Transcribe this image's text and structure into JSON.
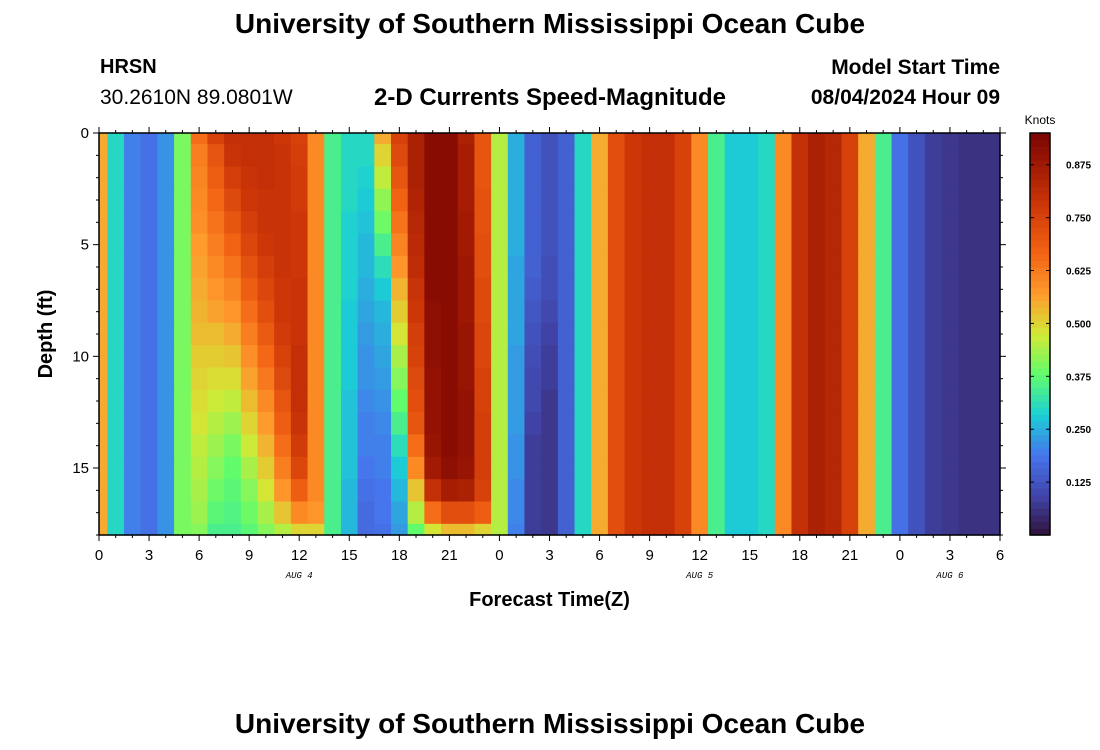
{
  "header": {
    "title": "University of Southern Mississippi Ocean Cube",
    "station": "HRSN",
    "coordinates": "30.2610N  89.0801W",
    "subtitle": "2-D Currents Speed-Magnitude",
    "model_start_label": "Model Start Time",
    "model_start_value": "08/04/2024 Hour 09"
  },
  "footer": {
    "title": "University of Southern Mississippi Ocean Cube"
  },
  "chart_data": {
    "type": "heatmap",
    "title": "2-D Currents Speed-Magnitude",
    "xlabel": "Forecast Time(Z)",
    "ylabel": "Depth (ft)",
    "x_unit": "hours since 08/04/2024 00Z",
    "xlim": [
      0,
      54
    ],
    "ylim": [
      0,
      18
    ],
    "x_ticks": [
      0,
      3,
      6,
      9,
      12,
      15,
      18,
      21,
      24,
      27,
      30,
      33,
      36,
      39,
      42,
      45,
      48,
      51,
      54
    ],
    "x_tick_labels": [
      "0",
      "3",
      "6",
      "9",
      "12",
      "15",
      "18",
      "21",
      "0",
      "3",
      "6",
      "9",
      "12",
      "15",
      "18",
      "21",
      "0",
      "3",
      "6"
    ],
    "y_ticks": [
      0,
      5,
      10,
      15
    ],
    "y_tick_labels": [
      "0",
      "5",
      "10",
      "15"
    ],
    "date_labels": [
      {
        "label": "AUG 4",
        "x": 12
      },
      {
        "label": "AUG 5",
        "x": 36
      },
      {
        "label": "AUG 6",
        "x": 51
      }
    ],
    "colorbar": {
      "label": "Knots",
      "range": [
        0,
        0.95
      ],
      "ticks": [
        0.125,
        0.25,
        0.375,
        0.5,
        0.625,
        0.75,
        0.875
      ],
      "tick_labels": [
        "0.125",
        "0.250",
        "0.375",
        "0.500",
        "0.625",
        "0.750",
        "0.875"
      ]
    },
    "grid": {
      "time_hours": [
        0,
        1,
        2,
        3,
        4,
        5,
        6,
        7,
        8,
        9,
        10,
        11,
        12,
        13,
        14,
        15,
        16,
        17,
        18,
        19,
        20,
        21,
        22,
        23,
        24,
        25,
        26,
        27,
        28,
        29,
        30,
        31,
        32,
        33,
        34,
        35,
        36,
        37,
        38,
        39,
        40,
        41,
        42,
        43,
        44,
        45,
        46,
        47,
        48,
        49,
        50,
        51,
        52,
        53,
        54
      ],
      "depth_ft": [
        0.0,
        1.0,
        2.0,
        3.0,
        4.0,
        5.0,
        6.0,
        7.0,
        8.0,
        9.0,
        10.0,
        11.0,
        12.0,
        13.0,
        14.0,
        15.0,
        16.0,
        17.0,
        18.0
      ],
      "speed_knots": [
        [
          0.55,
          0.3,
          0.2,
          0.18,
          0.22,
          0.4,
          0.65,
          0.75,
          0.8,
          0.8,
          0.8,
          0.78,
          0.75,
          0.6,
          0.35,
          0.3,
          0.3,
          0.55,
          0.75,
          0.85,
          0.92,
          0.92,
          0.85,
          0.7,
          0.45,
          0.25,
          0.15,
          0.12,
          0.15,
          0.3,
          0.55,
          0.72,
          0.78,
          0.8,
          0.8,
          0.75,
          0.6,
          0.35,
          0.28,
          0.28,
          0.3,
          0.6,
          0.8,
          0.85,
          0.83,
          0.75,
          0.55,
          0.35,
          0.18,
          0.12,
          0.08,
          0.07,
          0.06,
          0.06,
          0.06
        ],
        [
          0.55,
          0.3,
          0.2,
          0.18,
          0.22,
          0.4,
          0.62,
          0.7,
          0.79,
          0.8,
          0.8,
          0.79,
          0.76,
          0.6,
          0.35,
          0.3,
          0.3,
          0.5,
          0.73,
          0.85,
          0.92,
          0.92,
          0.86,
          0.7,
          0.45,
          0.25,
          0.15,
          0.12,
          0.15,
          0.3,
          0.55,
          0.72,
          0.78,
          0.8,
          0.8,
          0.75,
          0.6,
          0.35,
          0.28,
          0.28,
          0.3,
          0.6,
          0.8,
          0.85,
          0.83,
          0.75,
          0.55,
          0.35,
          0.18,
          0.12,
          0.08,
          0.07,
          0.06,
          0.06,
          0.06
        ],
        [
          0.55,
          0.3,
          0.2,
          0.18,
          0.22,
          0.4,
          0.61,
          0.68,
          0.76,
          0.79,
          0.8,
          0.79,
          0.77,
          0.6,
          0.35,
          0.3,
          0.29,
          0.46,
          0.7,
          0.85,
          0.92,
          0.92,
          0.86,
          0.7,
          0.45,
          0.25,
          0.15,
          0.12,
          0.15,
          0.3,
          0.55,
          0.72,
          0.78,
          0.8,
          0.8,
          0.75,
          0.6,
          0.35,
          0.28,
          0.28,
          0.3,
          0.6,
          0.8,
          0.85,
          0.83,
          0.75,
          0.55,
          0.35,
          0.18,
          0.12,
          0.08,
          0.07,
          0.06,
          0.06,
          0.06
        ],
        [
          0.55,
          0.3,
          0.2,
          0.18,
          0.22,
          0.4,
          0.6,
          0.66,
          0.73,
          0.78,
          0.79,
          0.79,
          0.77,
          0.6,
          0.35,
          0.3,
          0.28,
          0.42,
          0.67,
          0.84,
          0.92,
          0.92,
          0.86,
          0.71,
          0.45,
          0.25,
          0.15,
          0.12,
          0.15,
          0.3,
          0.55,
          0.72,
          0.78,
          0.8,
          0.8,
          0.75,
          0.6,
          0.35,
          0.28,
          0.28,
          0.3,
          0.6,
          0.8,
          0.85,
          0.83,
          0.75,
          0.55,
          0.35,
          0.18,
          0.12,
          0.08,
          0.07,
          0.06,
          0.06,
          0.06
        ],
        [
          0.55,
          0.3,
          0.2,
          0.18,
          0.22,
          0.4,
          0.59,
          0.64,
          0.7,
          0.76,
          0.79,
          0.79,
          0.78,
          0.6,
          0.35,
          0.29,
          0.27,
          0.39,
          0.64,
          0.83,
          0.92,
          0.92,
          0.87,
          0.71,
          0.45,
          0.25,
          0.15,
          0.12,
          0.15,
          0.3,
          0.55,
          0.72,
          0.78,
          0.8,
          0.8,
          0.75,
          0.6,
          0.35,
          0.28,
          0.28,
          0.3,
          0.6,
          0.8,
          0.85,
          0.83,
          0.75,
          0.55,
          0.35,
          0.18,
          0.12,
          0.08,
          0.07,
          0.06,
          0.06,
          0.06
        ],
        [
          0.55,
          0.3,
          0.2,
          0.18,
          0.22,
          0.4,
          0.57,
          0.62,
          0.67,
          0.74,
          0.78,
          0.79,
          0.78,
          0.6,
          0.35,
          0.29,
          0.26,
          0.35,
          0.61,
          0.82,
          0.92,
          0.92,
          0.87,
          0.72,
          0.45,
          0.25,
          0.15,
          0.12,
          0.15,
          0.3,
          0.55,
          0.72,
          0.78,
          0.8,
          0.8,
          0.75,
          0.6,
          0.35,
          0.28,
          0.28,
          0.3,
          0.6,
          0.8,
          0.85,
          0.83,
          0.75,
          0.55,
          0.35,
          0.18,
          0.12,
          0.08,
          0.07,
          0.06,
          0.06,
          0.06
        ],
        [
          0.55,
          0.3,
          0.2,
          0.18,
          0.22,
          0.4,
          0.56,
          0.6,
          0.64,
          0.71,
          0.76,
          0.79,
          0.78,
          0.6,
          0.35,
          0.29,
          0.26,
          0.31,
          0.58,
          0.81,
          0.92,
          0.92,
          0.88,
          0.72,
          0.45,
          0.24,
          0.15,
          0.11,
          0.15,
          0.3,
          0.55,
          0.72,
          0.78,
          0.8,
          0.8,
          0.75,
          0.6,
          0.35,
          0.28,
          0.28,
          0.3,
          0.6,
          0.8,
          0.85,
          0.83,
          0.75,
          0.55,
          0.35,
          0.18,
          0.12,
          0.08,
          0.07,
          0.06,
          0.06,
          0.06
        ],
        [
          0.55,
          0.3,
          0.2,
          0.18,
          0.22,
          0.4,
          0.55,
          0.58,
          0.61,
          0.68,
          0.74,
          0.78,
          0.79,
          0.6,
          0.35,
          0.29,
          0.25,
          0.28,
          0.54,
          0.79,
          0.92,
          0.92,
          0.88,
          0.73,
          0.45,
          0.24,
          0.14,
          0.11,
          0.15,
          0.3,
          0.55,
          0.72,
          0.78,
          0.8,
          0.8,
          0.75,
          0.6,
          0.35,
          0.28,
          0.28,
          0.3,
          0.6,
          0.8,
          0.85,
          0.83,
          0.75,
          0.55,
          0.35,
          0.18,
          0.12,
          0.08,
          0.07,
          0.06,
          0.06,
          0.06
        ],
        [
          0.55,
          0.3,
          0.2,
          0.18,
          0.22,
          0.4,
          0.54,
          0.56,
          0.58,
          0.65,
          0.72,
          0.78,
          0.79,
          0.6,
          0.35,
          0.28,
          0.24,
          0.26,
          0.51,
          0.78,
          0.91,
          0.92,
          0.88,
          0.73,
          0.45,
          0.24,
          0.13,
          0.1,
          0.15,
          0.3,
          0.55,
          0.72,
          0.78,
          0.8,
          0.8,
          0.75,
          0.6,
          0.35,
          0.28,
          0.28,
          0.3,
          0.6,
          0.8,
          0.85,
          0.83,
          0.75,
          0.55,
          0.35,
          0.18,
          0.12,
          0.08,
          0.07,
          0.06,
          0.06,
          0.06
        ],
        [
          0.55,
          0.3,
          0.2,
          0.18,
          0.22,
          0.4,
          0.53,
          0.53,
          0.55,
          0.62,
          0.69,
          0.77,
          0.79,
          0.6,
          0.35,
          0.28,
          0.23,
          0.25,
          0.48,
          0.76,
          0.91,
          0.92,
          0.89,
          0.74,
          0.45,
          0.24,
          0.12,
          0.09,
          0.15,
          0.3,
          0.55,
          0.72,
          0.78,
          0.8,
          0.8,
          0.75,
          0.6,
          0.35,
          0.28,
          0.28,
          0.3,
          0.6,
          0.8,
          0.85,
          0.83,
          0.75,
          0.55,
          0.35,
          0.18,
          0.12,
          0.08,
          0.07,
          0.06,
          0.06,
          0.06
        ],
        [
          0.55,
          0.3,
          0.2,
          0.18,
          0.22,
          0.4,
          0.51,
          0.51,
          0.52,
          0.59,
          0.66,
          0.75,
          0.8,
          0.6,
          0.35,
          0.28,
          0.22,
          0.24,
          0.44,
          0.75,
          0.91,
          0.92,
          0.89,
          0.74,
          0.45,
          0.23,
          0.11,
          0.08,
          0.15,
          0.3,
          0.55,
          0.72,
          0.78,
          0.8,
          0.8,
          0.75,
          0.6,
          0.35,
          0.28,
          0.28,
          0.3,
          0.6,
          0.8,
          0.85,
          0.83,
          0.75,
          0.55,
          0.35,
          0.18,
          0.12,
          0.08,
          0.07,
          0.06,
          0.06,
          0.06
        ],
        [
          0.55,
          0.3,
          0.2,
          0.18,
          0.22,
          0.4,
          0.5,
          0.49,
          0.49,
          0.56,
          0.63,
          0.73,
          0.8,
          0.6,
          0.35,
          0.28,
          0.22,
          0.23,
          0.41,
          0.73,
          0.9,
          0.92,
          0.89,
          0.75,
          0.45,
          0.23,
          0.1,
          0.08,
          0.15,
          0.3,
          0.55,
          0.72,
          0.78,
          0.8,
          0.8,
          0.75,
          0.6,
          0.35,
          0.28,
          0.28,
          0.3,
          0.6,
          0.8,
          0.85,
          0.83,
          0.75,
          0.55,
          0.35,
          0.18,
          0.12,
          0.08,
          0.07,
          0.06,
          0.06,
          0.06
        ],
        [
          0.55,
          0.3,
          0.2,
          0.18,
          0.22,
          0.4,
          0.49,
          0.47,
          0.46,
          0.53,
          0.6,
          0.7,
          0.8,
          0.6,
          0.35,
          0.27,
          0.21,
          0.22,
          0.38,
          0.72,
          0.9,
          0.92,
          0.9,
          0.75,
          0.45,
          0.23,
          0.1,
          0.07,
          0.15,
          0.3,
          0.55,
          0.72,
          0.78,
          0.8,
          0.8,
          0.75,
          0.6,
          0.35,
          0.28,
          0.28,
          0.3,
          0.6,
          0.8,
          0.85,
          0.83,
          0.75,
          0.55,
          0.35,
          0.18,
          0.12,
          0.08,
          0.07,
          0.06,
          0.06,
          0.06
        ],
        [
          0.55,
          0.3,
          0.2,
          0.18,
          0.22,
          0.4,
          0.48,
          0.45,
          0.43,
          0.5,
          0.57,
          0.68,
          0.79,
          0.6,
          0.35,
          0.27,
          0.2,
          0.21,
          0.35,
          0.7,
          0.9,
          0.92,
          0.9,
          0.76,
          0.45,
          0.23,
          0.09,
          0.07,
          0.15,
          0.3,
          0.55,
          0.72,
          0.78,
          0.8,
          0.8,
          0.75,
          0.6,
          0.35,
          0.28,
          0.28,
          0.3,
          0.6,
          0.8,
          0.85,
          0.83,
          0.75,
          0.55,
          0.35,
          0.18,
          0.12,
          0.08,
          0.07,
          0.06,
          0.06,
          0.06
        ],
        [
          0.55,
          0.3,
          0.2,
          0.18,
          0.22,
          0.4,
          0.46,
          0.43,
          0.4,
          0.47,
          0.54,
          0.65,
          0.77,
          0.6,
          0.35,
          0.27,
          0.2,
          0.2,
          0.31,
          0.65,
          0.89,
          0.92,
          0.9,
          0.76,
          0.45,
          0.22,
          0.08,
          0.07,
          0.15,
          0.3,
          0.55,
          0.72,
          0.78,
          0.8,
          0.8,
          0.75,
          0.6,
          0.35,
          0.28,
          0.28,
          0.3,
          0.6,
          0.8,
          0.85,
          0.83,
          0.75,
          0.55,
          0.35,
          0.18,
          0.12,
          0.08,
          0.07,
          0.06,
          0.06,
          0.06
        ],
        [
          0.55,
          0.3,
          0.2,
          0.18,
          0.22,
          0.4,
          0.45,
          0.41,
          0.38,
          0.44,
          0.51,
          0.62,
          0.74,
          0.6,
          0.35,
          0.27,
          0.19,
          0.2,
          0.28,
          0.6,
          0.87,
          0.91,
          0.89,
          0.76,
          0.45,
          0.22,
          0.08,
          0.07,
          0.15,
          0.3,
          0.55,
          0.72,
          0.78,
          0.8,
          0.8,
          0.75,
          0.6,
          0.35,
          0.28,
          0.28,
          0.3,
          0.6,
          0.8,
          0.85,
          0.83,
          0.75,
          0.55,
          0.35,
          0.18,
          0.12,
          0.08,
          0.07,
          0.06,
          0.06,
          0.06
        ],
        [
          0.55,
          0.3,
          0.2,
          0.18,
          0.22,
          0.4,
          0.44,
          0.39,
          0.37,
          0.41,
          0.48,
          0.58,
          0.68,
          0.6,
          0.35,
          0.26,
          0.18,
          0.19,
          0.26,
          0.52,
          0.8,
          0.86,
          0.85,
          0.75,
          0.45,
          0.21,
          0.08,
          0.07,
          0.15,
          0.3,
          0.55,
          0.72,
          0.78,
          0.8,
          0.8,
          0.75,
          0.6,
          0.35,
          0.28,
          0.28,
          0.3,
          0.6,
          0.8,
          0.85,
          0.83,
          0.75,
          0.55,
          0.35,
          0.18,
          0.12,
          0.08,
          0.07,
          0.06,
          0.06,
          0.06
        ],
        [
          0.55,
          0.3,
          0.2,
          0.18,
          0.22,
          0.4,
          0.43,
          0.37,
          0.36,
          0.39,
          0.44,
          0.52,
          0.6,
          0.58,
          0.35,
          0.26,
          0.17,
          0.19,
          0.24,
          0.45,
          0.65,
          0.72,
          0.72,
          0.68,
          0.45,
          0.21,
          0.08,
          0.07,
          0.15,
          0.3,
          0.55,
          0.72,
          0.78,
          0.8,
          0.8,
          0.75,
          0.6,
          0.35,
          0.28,
          0.28,
          0.3,
          0.6,
          0.8,
          0.85,
          0.83,
          0.75,
          0.55,
          0.35,
          0.18,
          0.12,
          0.08,
          0.07,
          0.06,
          0.06,
          0.06
        ],
        [
          0.55,
          0.3,
          0.2,
          0.18,
          0.22,
          0.4,
          0.41,
          0.35,
          0.35,
          0.37,
          0.41,
          0.45,
          0.5,
          0.5,
          0.35,
          0.26,
          0.17,
          0.18,
          0.23,
          0.38,
          0.48,
          0.53,
          0.53,
          0.5,
          0.45,
          0.2,
          0.08,
          0.07,
          0.15,
          0.3,
          0.55,
          0.72,
          0.78,
          0.8,
          0.8,
          0.75,
          0.6,
          0.35,
          0.28,
          0.28,
          0.3,
          0.6,
          0.8,
          0.85,
          0.83,
          0.75,
          0.55,
          0.35,
          0.18,
          0.12,
          0.08,
          0.07,
          0.06,
          0.06,
          0.06
        ]
      ]
    }
  },
  "colors": {
    "frame": "#000000",
    "background": "#ffffff"
  }
}
